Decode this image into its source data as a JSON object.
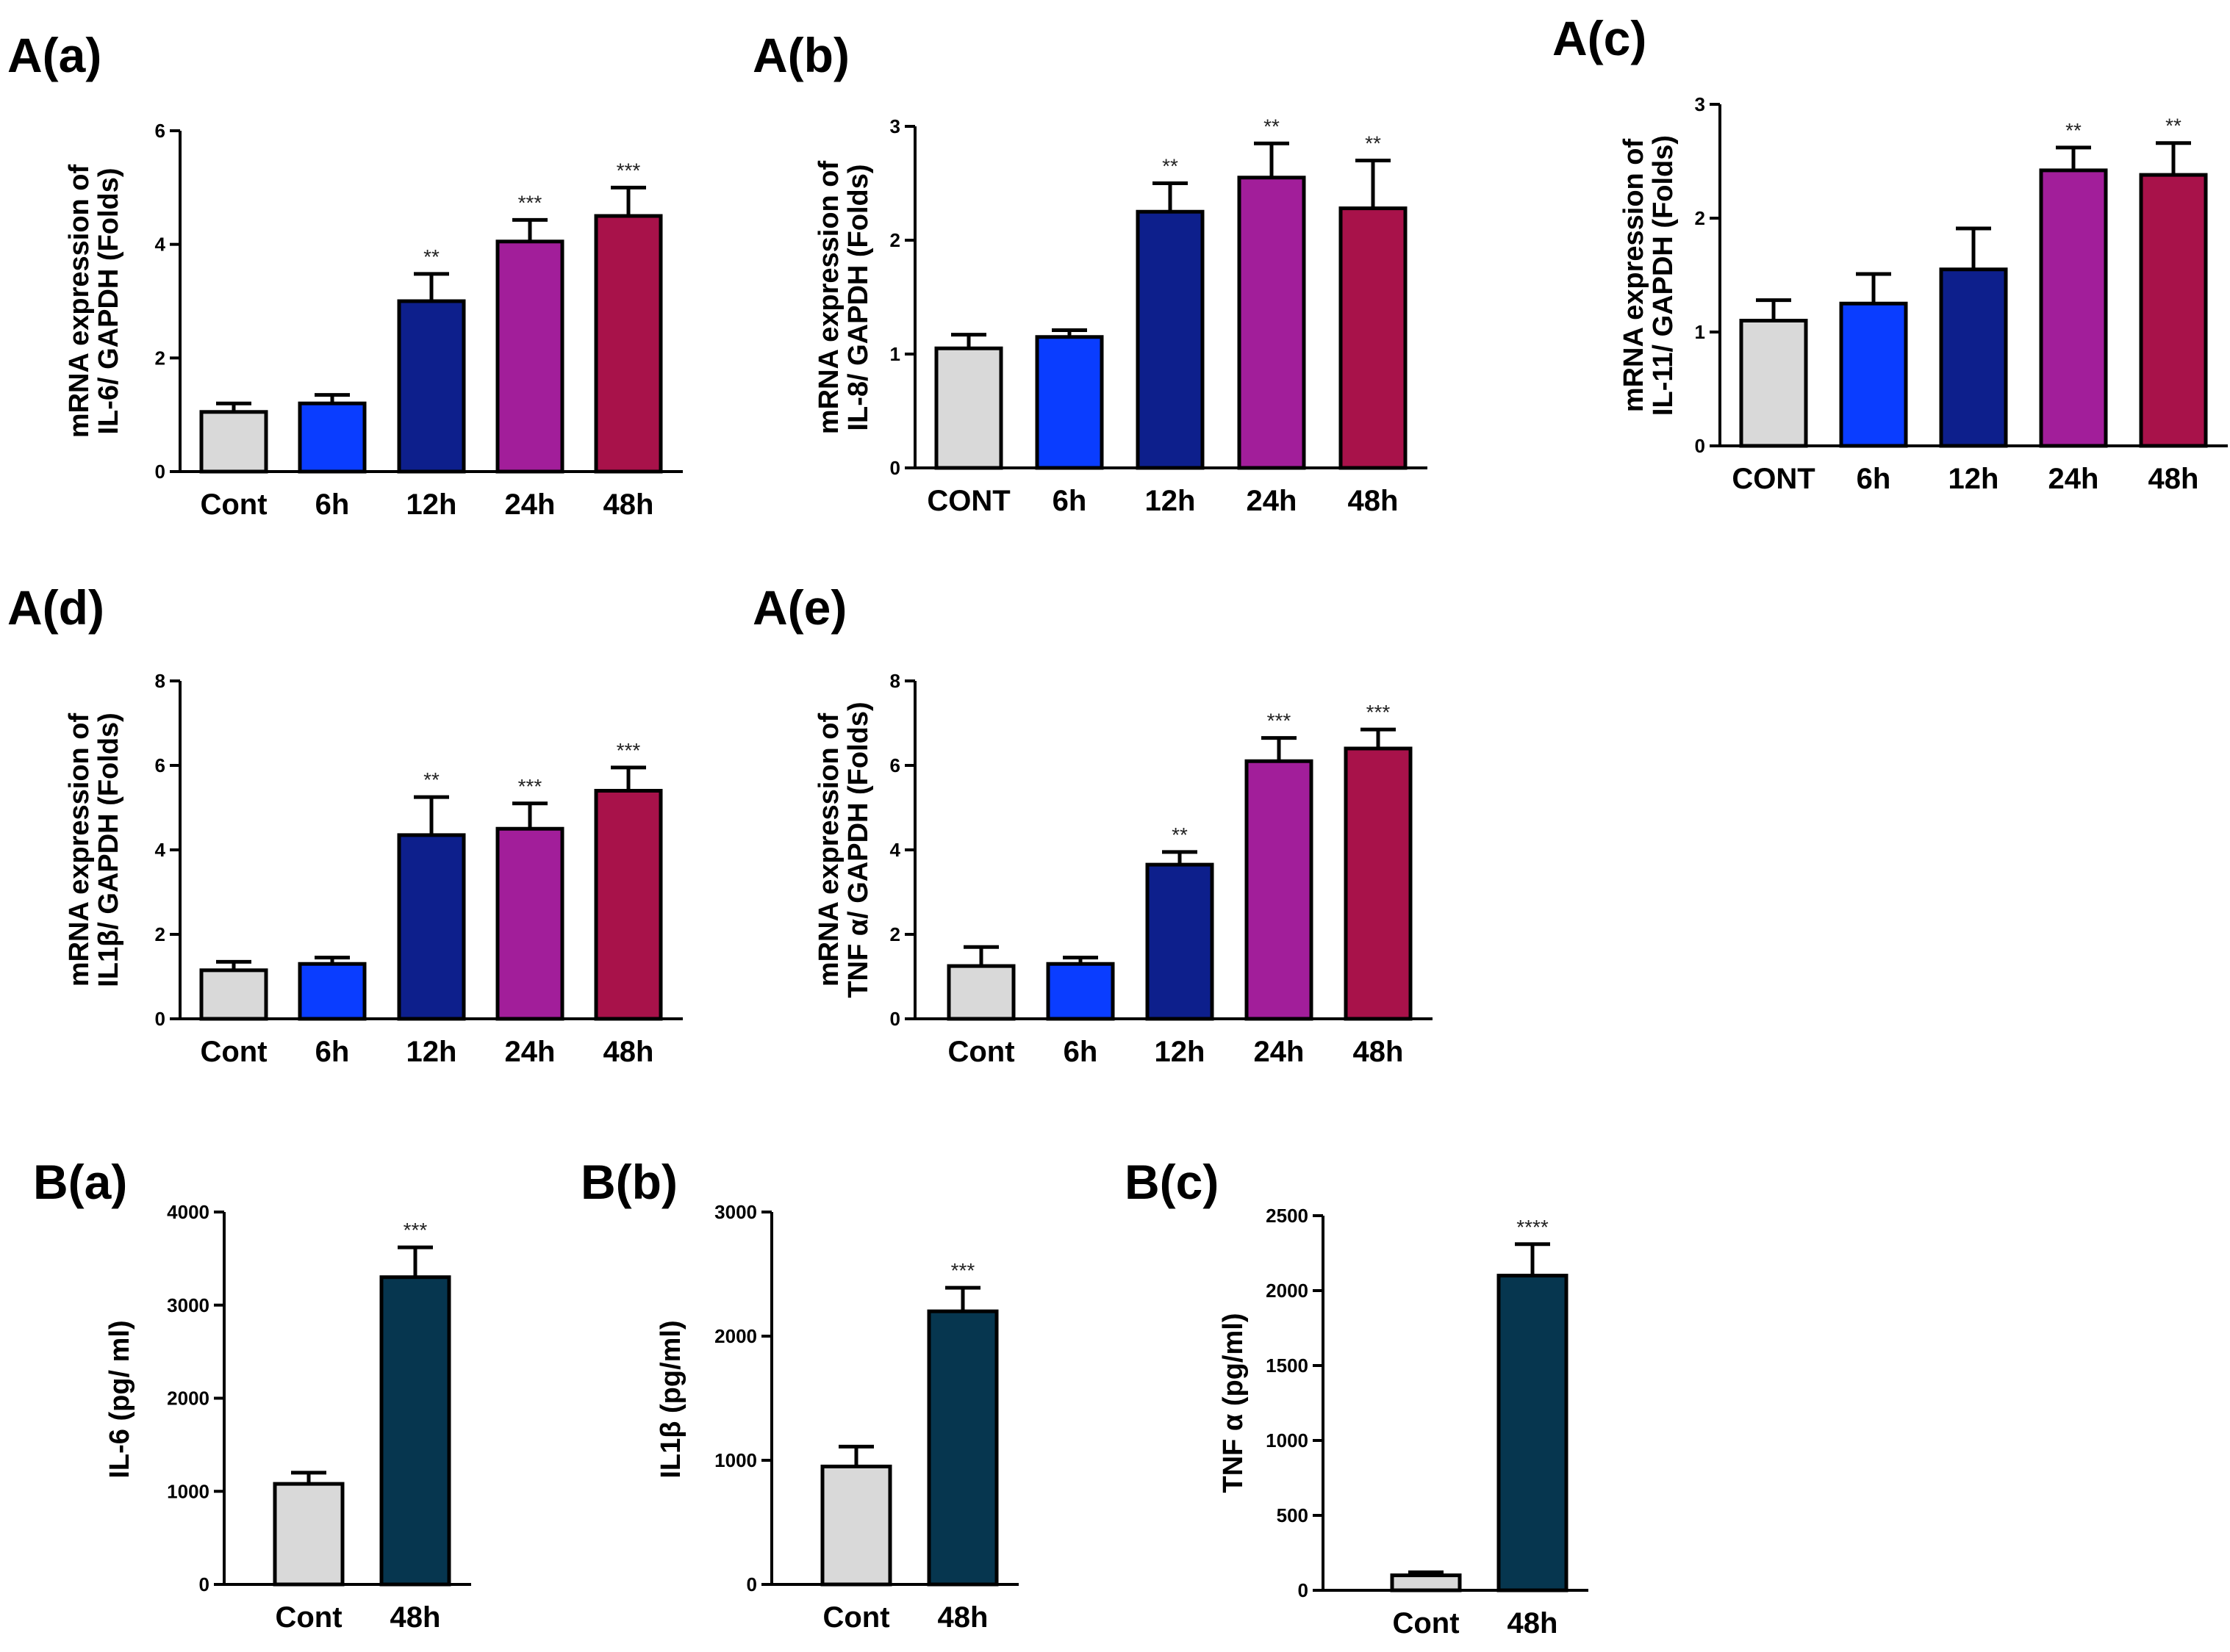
{
  "chart_data": [
    {
      "panel": "A(a)",
      "type": "bar",
      "ylabel": [
        "mRNA expression of",
        "IL-6/ GAPDH (Folds)"
      ],
      "ylim": [
        0,
        6
      ],
      "yticks": [
        "0",
        "2",
        "4",
        "6"
      ],
      "categories": [
        "Cont",
        "6h",
        "12h",
        "24h",
        "48h"
      ],
      "values": [
        1.05,
        1.2,
        3.0,
        4.05,
        4.5
      ],
      "errors": [
        0.15,
        0.15,
        0.48,
        0.38,
        0.5
      ],
      "significance": [
        "",
        "",
        "**",
        "***",
        "***"
      ],
      "colors": [
        "#d9d9d9",
        "#0a3dff",
        "#0d1f8c",
        "#a21e9a",
        "#a8124a"
      ]
    },
    {
      "panel": "A(b)",
      "type": "bar",
      "ylabel": [
        "mRNA expression of",
        "IL-8/ GAPDH (Folds)"
      ],
      "ylim": [
        0,
        3
      ],
      "yticks": [
        "0",
        "1",
        "2",
        "3"
      ],
      "categories": [
        "CONT",
        "6h",
        "12h",
        "24h",
        "48h"
      ],
      "values": [
        1.05,
        1.15,
        2.25,
        2.55,
        2.28
      ],
      "errors": [
        0.12,
        0.06,
        0.25,
        0.3,
        0.42
      ],
      "significance": [
        "",
        "",
        "**",
        "**",
        "**"
      ],
      "colors": [
        "#d9d9d9",
        "#0a3dff",
        "#0d1f8c",
        "#a21e9a",
        "#a8124a"
      ]
    },
    {
      "panel": "A(c)",
      "type": "bar",
      "ylabel": [
        "mRNA expression of",
        "IL-11/ GAPDH (Folds)"
      ],
      "ylim": [
        0,
        3
      ],
      "yticks": [
        "0",
        "1",
        "2",
        "3"
      ],
      "categories": [
        "CONT",
        "6h",
        "12h",
        "24h",
        "48h"
      ],
      "values": [
        1.1,
        1.25,
        1.55,
        2.42,
        2.38
      ],
      "errors": [
        0.18,
        0.26,
        0.36,
        0.2,
        0.28
      ],
      "significance": [
        "",
        "",
        "",
        "**",
        "**"
      ],
      "colors": [
        "#d9d9d9",
        "#0a3dff",
        "#0d1f8c",
        "#a21e9a",
        "#a8124a"
      ]
    },
    {
      "panel": "A(d)",
      "type": "bar",
      "ylabel": [
        "mRNA expression of",
        "IL1β/ GAPDH (Folds)"
      ],
      "ylim": [
        0,
        8
      ],
      "yticks": [
        "0",
        "2",
        "4",
        "6",
        "8"
      ],
      "categories": [
        "Cont",
        "6h",
        "12h",
        "24h",
        "48h"
      ],
      "values": [
        1.15,
        1.3,
        4.35,
        4.5,
        5.4
      ],
      "errors": [
        0.2,
        0.15,
        0.9,
        0.6,
        0.55
      ],
      "significance": [
        "",
        "",
        "**",
        "***",
        "***"
      ],
      "colors": [
        "#d9d9d9",
        "#0a3dff",
        "#0d1f8c",
        "#a21e9a",
        "#a8124a"
      ]
    },
    {
      "panel": "A(e)",
      "type": "bar",
      "ylabel": [
        "mRNA expression of",
        "TNF α/ GAPDH (Folds)"
      ],
      "ylim": [
        0,
        8
      ],
      "yticks": [
        "0",
        "2",
        "4",
        "6",
        "8"
      ],
      "categories": [
        "Cont",
        "6h",
        "12h",
        "24h",
        "48h"
      ],
      "values": [
        1.25,
        1.3,
        3.65,
        6.1,
        6.4
      ],
      "errors": [
        0.45,
        0.15,
        0.3,
        0.55,
        0.45
      ],
      "significance": [
        "",
        "",
        "**",
        "***",
        "***"
      ],
      "colors": [
        "#d9d9d9",
        "#0a3dff",
        "#0d1f8c",
        "#a21e9a",
        "#a8124a"
      ]
    },
    {
      "panel": "B(a)",
      "type": "bar",
      "ylabel": [
        "IL-6 (pg/ ml)"
      ],
      "ylim": [
        0,
        4000
      ],
      "yticks": [
        "0",
        "1000",
        "2000",
        "3000",
        "4000"
      ],
      "categories": [
        "Cont",
        "48h"
      ],
      "values": [
        1080,
        3300
      ],
      "errors": [
        120,
        320
      ],
      "significance": [
        "",
        "***"
      ],
      "colors": [
        "#d9d9d9",
        "#06364f"
      ]
    },
    {
      "panel": "B(b)",
      "type": "bar",
      "ylabel": [
        "IL1β (pg/ml)"
      ],
      "ylim": [
        0,
        3000
      ],
      "yticks": [
        "0",
        "1000",
        "2000",
        "3000"
      ],
      "categories": [
        "Cont",
        "48h"
      ],
      "values": [
        950,
        2200
      ],
      "errors": [
        160,
        190
      ],
      "significance": [
        "",
        "***"
      ],
      "colors": [
        "#d9d9d9",
        "#06364f"
      ]
    },
    {
      "panel": "B(c)",
      "type": "bar",
      "ylabel": [
        "TNF α (pg/ml)"
      ],
      "ylim": [
        0,
        2500
      ],
      "yticks": [
        "0",
        "500",
        "1000",
        "1500",
        "2000",
        "2500"
      ],
      "categories": [
        "Cont",
        "48h"
      ],
      "values": [
        100,
        2100
      ],
      "errors": [
        20,
        210
      ],
      "significance": [
        "",
        "****"
      ],
      "colors": [
        "#d9d9d9",
        "#06364f"
      ]
    }
  ]
}
